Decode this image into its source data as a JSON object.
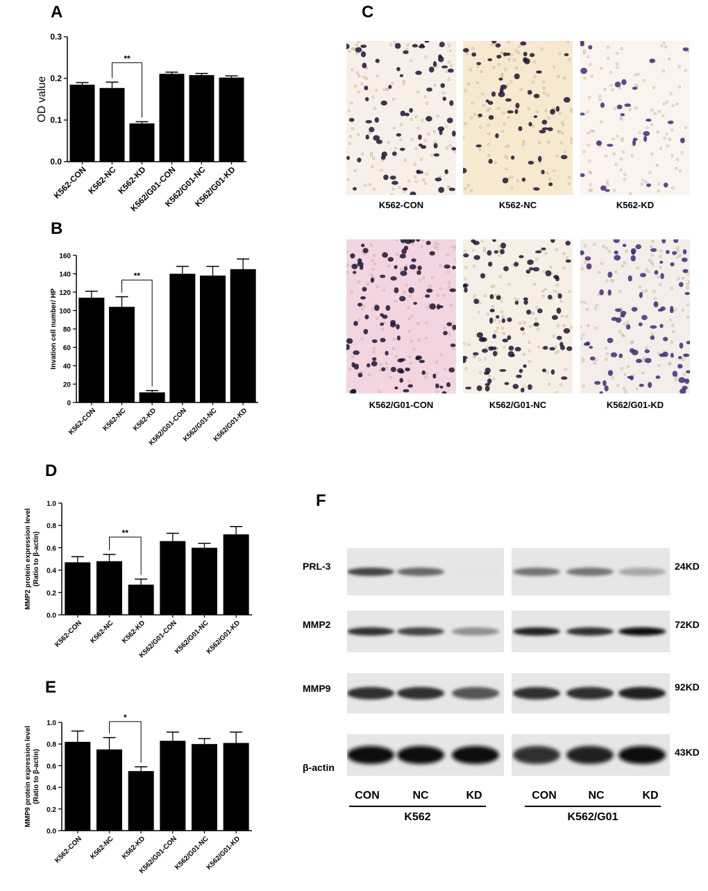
{
  "figure": {
    "panel_letters": [
      "A",
      "B",
      "C",
      "D",
      "E",
      "F"
    ]
  },
  "chart_data": [
    {
      "panel": "A",
      "type": "bar",
      "categories": [
        "K562-CON",
        "K562-NC",
        "K562-KD",
        "K562/G01-CON",
        "K562/G01-NC",
        "K562/G01-KD"
      ],
      "values": [
        0.185,
        0.177,
        0.092,
        0.211,
        0.208,
        0.202
      ],
      "errors": [
        0.005,
        0.014,
        0.004,
        0.004,
        0.004,
        0.004
      ],
      "title": "",
      "xlabel": "",
      "ylabel": "OD  value",
      "ylim": [
        0,
        0.3
      ],
      "yticks": [
        "0.0",
        "0.1",
        "0.2",
        "0.3"
      ],
      "significance": {
        "from": 1,
        "to": 2,
        "label": "**"
      },
      "grid": false
    },
    {
      "panel": "B",
      "type": "bar",
      "categories": [
        "K562-CON",
        "K562-NC",
        "K562-KD",
        "K562/G01-CON",
        "K562/G01-NC",
        "K562/G01-KD"
      ],
      "values": [
        114,
        104,
        11,
        140,
        138,
        145
      ],
      "errors": [
        7,
        11,
        2,
        8,
        10,
        11
      ],
      "title": "",
      "xlabel": "",
      "ylabel": "Invation cell number/ HP",
      "ylim": [
        0,
        160
      ],
      "yticks": [
        "0",
        "20",
        "40",
        "60",
        "80",
        "100",
        "120",
        "140",
        "160"
      ],
      "significance": {
        "from": 1,
        "to": 2,
        "label": "**"
      },
      "grid": false
    },
    {
      "panel": "D",
      "type": "bar",
      "categories": [
        "K562-CON",
        "K562-NC",
        "K562-KD",
        "K562/G01-CON",
        "K562/G01-NC",
        "K562/G01-KD"
      ],
      "values": [
        0.47,
        0.48,
        0.27,
        0.66,
        0.6,
        0.72
      ],
      "errors": [
        0.05,
        0.06,
        0.05,
        0.07,
        0.04,
        0.07
      ],
      "title": "",
      "xlabel": "",
      "ylabel": "MMP2 protein expression level",
      "ylabel2": "(Ratio to β-actin)",
      "ylim": [
        0,
        1.0
      ],
      "yticks": [
        "0.0",
        "0.2",
        "0.4",
        "0.6",
        "0.8",
        "1.0"
      ],
      "significance": {
        "from": 1,
        "to": 2,
        "label": "**"
      },
      "grid": false
    },
    {
      "panel": "E",
      "type": "bar",
      "categories": [
        "K562-CON",
        "K562-NC",
        "K562-KD",
        "K562/G01-CON",
        "K562/G01-NC",
        "K562/G01-KD"
      ],
      "values": [
        0.82,
        0.75,
        0.55,
        0.83,
        0.8,
        0.81
      ],
      "errors": [
        0.1,
        0.11,
        0.04,
        0.08,
        0.05,
        0.1
      ],
      "title": "",
      "xlabel": "",
      "ylabel": "MMP9 protein expression level",
      "ylabel2": "(Ratio to β-actin)",
      "ylim": [
        0,
        1.0
      ],
      "yticks": [
        "0.0",
        "0.2",
        "0.4",
        "0.6",
        "0.8",
        "1.0"
      ],
      "significance": {
        "from": 1,
        "to": 2,
        "label": "*"
      },
      "grid": false
    }
  ],
  "micrographs": {
    "labels": [
      "K562-CON",
      "K562-NC",
      "K562-KD",
      "K562/G01-CON",
      "K562/G01-NC",
      "K562/G01-KD"
    ],
    "colors": {
      "pink_bg": "#f3d5e2",
      "cream_bg": "#f6e9d0",
      "light_bg": "#f8efe8",
      "cell_dark": "#1c1530",
      "cell_purple": "#3d2b78"
    }
  },
  "western_blot": {
    "proteins": [
      "PRL-3",
      "MMP2",
      "MMP9",
      "β-actin"
    ],
    "sizes": [
      "24KD",
      "72KD",
      "92KD",
      "43KD"
    ],
    "lanes": [
      "CON",
      "NC",
      "KD",
      "CON",
      "NC",
      "KD"
    ],
    "groups": [
      "K562",
      "K562/G01"
    ],
    "intensity": [
      [
        0.85,
        0.75,
        0.05,
        0.7,
        0.7,
        0.5
      ],
      [
        0.9,
        0.85,
        0.6,
        0.95,
        0.9,
        1.0
      ],
      [
        0.9,
        0.9,
        0.8,
        0.9,
        0.9,
        0.95
      ],
      [
        1.0,
        1.0,
        1.0,
        0.9,
        0.95,
        1.0
      ]
    ]
  }
}
